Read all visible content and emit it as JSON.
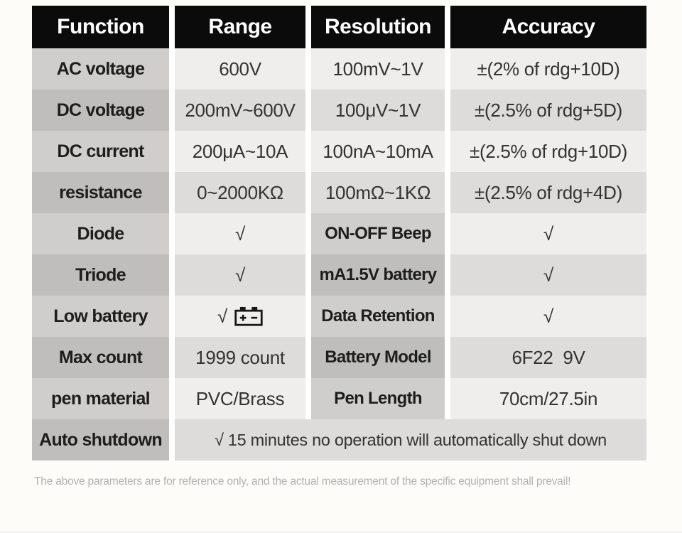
{
  "table": {
    "headers": [
      "Function",
      "Range",
      "Resolution",
      "Accuracy"
    ],
    "rows": [
      {
        "function": "AC voltage",
        "range": "600V",
        "resolution": "100mV~1V",
        "accuracy": "±(2% of rdg+10D)",
        "shade": "light",
        "resolution_is_label": false
      },
      {
        "function": "DC voltage",
        "range": "200mV~600V",
        "resolution": "100μV~1V",
        "accuracy": "±(2.5% of rdg+5D)",
        "shade": "dark",
        "resolution_is_label": false
      },
      {
        "function": "DC current",
        "range": "200μA~10A",
        "resolution": "100nA~10mA",
        "accuracy": "±(2.5% of rdg+10D)",
        "shade": "light",
        "resolution_is_label": false
      },
      {
        "function": "resistance",
        "range": "0~2000KΩ",
        "resolution": "100mΩ~1KΩ",
        "accuracy": "±(2.5% of rdg+4D)",
        "shade": "dark",
        "resolution_is_label": false
      },
      {
        "function": "Diode",
        "range": "√",
        "resolution": "ON-OFF Beep",
        "accuracy": "√",
        "shade": "light",
        "resolution_is_label": true
      },
      {
        "function": "Triode",
        "range": "√",
        "resolution": "mA1.5V battery",
        "accuracy": "√",
        "shade": "dark",
        "resolution_is_label": true
      },
      {
        "function": "Low battery",
        "range": "√",
        "range_icon": "battery",
        "resolution": "Data Retention",
        "accuracy": "√",
        "shade": "light",
        "resolution_is_label": true
      },
      {
        "function": "Max count",
        "range": "1999 count",
        "resolution": "Battery Model",
        "accuracy": "6F22  9V",
        "shade": "dark",
        "resolution_is_label": true
      },
      {
        "function": "pen material",
        "range": "PVC/Brass",
        "resolution": "Pen Length",
        "accuracy": "70cm/27.5in",
        "shade": "light",
        "resolution_is_label": true
      },
      {
        "function": "Auto shutdown",
        "merged_value": "√ 15 minutes no operation will automatically shut down",
        "shade": "dark"
      }
    ],
    "footnote": "The above parameters are for reference only, and the actual measurement of the specific equipment shall prevail!"
  },
  "colors": {
    "header_bg": "#0b0b0b",
    "header_text": "#ffffff",
    "label_light": "#cfcecc",
    "label_dark": "#bfbebc",
    "value_light": "#efeeec",
    "value_dark": "#dddcda",
    "value_text": "#333332",
    "label_text": "#1d1d1d",
    "footnote_text": "#b2b1af",
    "page_bg": "#fdfcf9"
  }
}
